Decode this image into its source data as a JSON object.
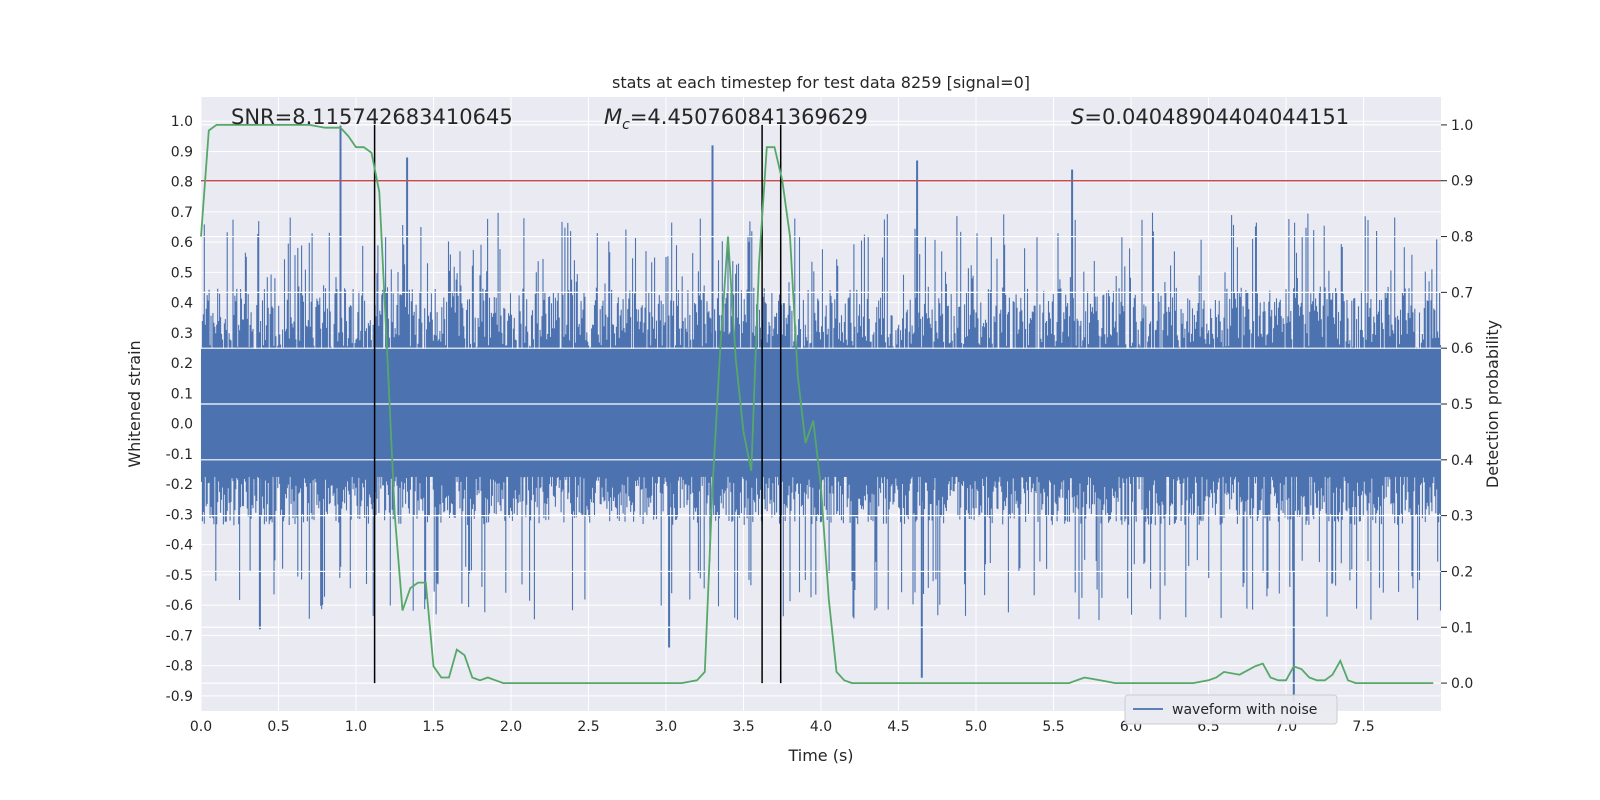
{
  "chart_data": {
    "type": "line",
    "title": "stats at each timestep for test data 8259 [signal=0]",
    "xlabel": "Time (s)",
    "ylabel": "Whitened strain",
    "ylabel_right": "Detection probability",
    "xlim": [
      0.0,
      8.0
    ],
    "ylim": [
      -0.95,
      1.08
    ],
    "ylim_right": [
      -0.05,
      1.05
    ],
    "x_ticks": [
      "0.0",
      "0.5",
      "1.0",
      "1.5",
      "2.0",
      "2.5",
      "3.0",
      "3.5",
      "4.0",
      "4.5",
      "5.0",
      "5.5",
      "6.0",
      "6.5",
      "7.0",
      "7.5"
    ],
    "y_ticks": [
      "1.0",
      "0.9",
      "0.8",
      "0.7",
      "0.6",
      "0.5",
      "0.4",
      "0.3",
      "0.2",
      "0.1",
      "0.0",
      "-0.1",
      "-0.2",
      "-0.3",
      "-0.4",
      "-0.5",
      "-0.6",
      "-0.7",
      "-0.8",
      "-0.9"
    ],
    "y_ticks_right": [
      "1.0",
      "0.9",
      "0.8",
      "0.7",
      "0.6",
      "0.5",
      "0.4",
      "0.3",
      "0.2",
      "0.1",
      "0.0"
    ],
    "annotations": {
      "snr": "SNR=8.115742683410645",
      "mc_symbol": "M",
      "mc_sub": "c",
      "mc_value": "=4.450760841369629",
      "s_symbol": "S",
      "s_value": "=0.04048904404044151"
    },
    "legend": {
      "label": "waveform with noise",
      "placement": "lower-right"
    },
    "threshold": {
      "value_right": 0.9,
      "color": "#c44e52"
    },
    "vlines_x": [
      1.12,
      3.62,
      3.74
    ],
    "series": [
      {
        "name": "waveform with noise",
        "color": "#4c72b0",
        "noise_band": [
          -0.32,
          0.45
        ],
        "peaks": [
          [
            0.9,
            0.99
          ],
          [
            1.33,
            0.88
          ],
          [
            3.3,
            0.92
          ],
          [
            4.62,
            0.87
          ],
          [
            5.62,
            0.84
          ],
          [
            0.38,
            -0.68
          ],
          [
            3.02,
            -0.74
          ],
          [
            4.65,
            -0.84
          ],
          [
            7.05,
            -0.92
          ]
        ]
      },
      {
        "name": "",
        "color": "#55a868",
        "axis": "right",
        "x": [
          0.0,
          0.05,
          0.1,
          0.2,
          0.3,
          0.4,
          0.5,
          0.6,
          0.7,
          0.8,
          0.9,
          0.95,
          1.0,
          1.05,
          1.1,
          1.15,
          1.2,
          1.25,
          1.3,
          1.35,
          1.4,
          1.45,
          1.5,
          1.55,
          1.6,
          1.65,
          1.7,
          1.75,
          1.8,
          1.85,
          1.9,
          1.95,
          2.0,
          2.1,
          2.2,
          2.3,
          2.4,
          2.5,
          2.6,
          2.7,
          2.8,
          2.9,
          3.0,
          3.1,
          3.2,
          3.25,
          3.3,
          3.35,
          3.4,
          3.45,
          3.5,
          3.55,
          3.6,
          3.65,
          3.7,
          3.75,
          3.8,
          3.85,
          3.9,
          3.95,
          4.0,
          4.05,
          4.1,
          4.15,
          4.2,
          4.4,
          4.6,
          4.8,
          5.0,
          5.2,
          5.4,
          5.6,
          5.7,
          5.8,
          5.9,
          6.0,
          6.2,
          6.4,
          6.5,
          6.55,
          6.6,
          6.7,
          6.8,
          6.85,
          6.9,
          6.95,
          7.0,
          7.05,
          7.1,
          7.15,
          7.2,
          7.25,
          7.3,
          7.35,
          7.4,
          7.45,
          7.5,
          7.6,
          7.7,
          7.8,
          7.95
        ],
        "values": [
          0.8,
          0.99,
          1.0,
          1.0,
          1.0,
          1.0,
          1.0,
          1.0,
          1.0,
          0.995,
          0.995,
          0.98,
          0.96,
          0.96,
          0.95,
          0.88,
          0.6,
          0.3,
          0.13,
          0.17,
          0.18,
          0.18,
          0.03,
          0.01,
          0.01,
          0.06,
          0.05,
          0.01,
          0.005,
          0.01,
          0.005,
          0.0,
          0.0,
          0.0,
          0.0,
          0.0,
          0.0,
          0.0,
          0.0,
          0.0,
          0.0,
          0.0,
          0.0,
          0.0,
          0.005,
          0.02,
          0.35,
          0.6,
          0.8,
          0.58,
          0.45,
          0.38,
          0.75,
          0.96,
          0.96,
          0.9,
          0.8,
          0.55,
          0.43,
          0.47,
          0.35,
          0.15,
          0.02,
          0.005,
          0.0,
          0.0,
          0.0,
          0.0,
          0.0,
          0.0,
          0.0,
          0.0,
          0.01,
          0.005,
          0.0,
          0.0,
          0.0,
          0.0,
          0.005,
          0.01,
          0.02,
          0.015,
          0.03,
          0.035,
          0.01,
          0.005,
          0.005,
          0.03,
          0.025,
          0.01,
          0.005,
          0.005,
          0.015,
          0.04,
          0.005,
          0.0,
          0.0,
          0.0,
          0.0,
          0.0,
          0.0
        ]
      }
    ]
  }
}
